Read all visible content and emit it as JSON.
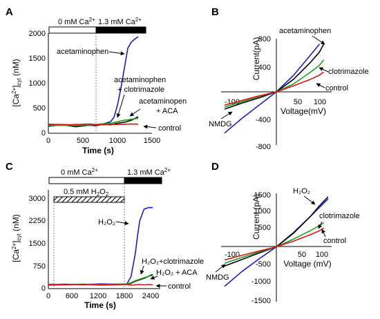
{
  "chart_data": [
    {
      "panel": "A",
      "type": "line",
      "xlabel": "Time (s)",
      "ylabel": "[Ca2+]cyt (nM)",
      "xlim": [
        0,
        1500
      ],
      "ylim": [
        0,
        2000
      ],
      "x_ticks": [
        0,
        500,
        1000,
        1500
      ],
      "y_ticks": [
        0,
        500,
        1000,
        1500,
        2000
      ],
      "condition_bars": [
        {
          "label": "0 mM Ca2+",
          "x_range": [
            0,
            680
          ],
          "fill": "white"
        },
        {
          "label": "1.3 mM Ca2+",
          "x_range": [
            680,
            1360
          ],
          "fill": "black"
        }
      ],
      "series": [
        {
          "name": "acetaminophen",
          "color": "#1a1acc",
          "x": [
            0,
            200,
            400,
            600,
            680,
            800,
            900,
            950,
            1000,
            1050,
            1100,
            1150,
            1200,
            1250,
            1300
          ],
          "y": [
            170,
            160,
            175,
            180,
            170,
            190,
            230,
            320,
            560,
            900,
            1300,
            1700,
            1820,
            1880,
            1930
          ]
        },
        {
          "name": "acetaminophen + clotrimazole",
          "color": "#000000",
          "x": [
            0,
            200,
            400,
            600,
            680,
            800,
            900,
            1000,
            1100,
            1200,
            1300
          ],
          "y": [
            140,
            170,
            130,
            160,
            150,
            180,
            170,
            200,
            220,
            260,
            330
          ]
        },
        {
          "name": "acetaminopen + ACA",
          "color": "#1f9e1f",
          "x": [
            0,
            200,
            400,
            600,
            680,
            800,
            900,
            1000,
            1100,
            1200,
            1300
          ],
          "y": [
            150,
            160,
            150,
            160,
            170,
            190,
            200,
            230,
            260,
            280,
            300
          ]
        },
        {
          "name": "control",
          "color": "#dd1111",
          "x": [
            0,
            200,
            400,
            600,
            680,
            800,
            900,
            1000,
            1100,
            1200,
            1300
          ],
          "y": [
            180,
            175,
            170,
            185,
            175,
            170,
            180,
            175,
            180,
            185,
            180
          ]
        }
      ],
      "annotations": [
        {
          "text": "acetaminophen"
        },
        {
          "text": "acetaminophen"
        },
        {
          "text": "+ clotrimazole"
        },
        {
          "text": "acetaminopen"
        },
        {
          "text": "+ ACA"
        },
        {
          "text": "control"
        }
      ]
    },
    {
      "panel": "B",
      "type": "line",
      "xlabel": "Voltage(mV)",
      "ylabel": "Current(pA)",
      "xlim": [
        -125,
        125
      ],
      "ylim": [
        -800,
        800
      ],
      "x_ticks": [
        -100,
        50,
        100
      ],
      "y_ticks": [
        -800,
        -400,
        400,
        800
      ],
      "series": [
        {
          "name": "NMDG",
          "color": "#1a1acc",
          "x": [
            -120,
            -80,
            -40,
            0,
            40,
            80,
            100
          ],
          "y": [
            -620,
            -400,
            -200,
            0,
            250,
            560,
            720
          ]
        },
        {
          "name": "acetaminophen",
          "color": "#000000",
          "x": [
            -120,
            -80,
            -40,
            0,
            40,
            80,
            100,
            110
          ],
          "y": [
            -260,
            -170,
            -90,
            0,
            190,
            450,
            600,
            720
          ]
        },
        {
          "name": "clotrimazole",
          "color": "#1f9e1f",
          "x": [
            -120,
            -80,
            -40,
            0,
            40,
            80,
            100,
            110
          ],
          "y": [
            -230,
            -150,
            -70,
            0,
            120,
            300,
            400,
            480
          ]
        },
        {
          "name": "control",
          "color": "#dd1111",
          "x": [
            -120,
            -80,
            -40,
            0,
            40,
            80,
            100,
            110
          ],
          "y": [
            -200,
            -130,
            -60,
            0,
            90,
            190,
            250,
            300
          ]
        }
      ],
      "annotations": [
        {
          "text": "acetaminophen"
        },
        {
          "text": "clotrimazole"
        },
        {
          "text": "control"
        },
        {
          "text": "NMDG"
        }
      ]
    },
    {
      "panel": "C",
      "type": "line",
      "xlabel": "Time (s)",
      "ylabel": "[Ca2+]cyt (nM)",
      "xlim": [
        0,
        2700
      ],
      "ylim": [
        0,
        3400
      ],
      "x_ticks": [
        0,
        600,
        1200,
        1800,
        2400
      ],
      "y_ticks": [
        0,
        750,
        1500,
        2250,
        3000
      ],
      "condition_bars": [
        {
          "label": "0 mM Ca2+",
          "x_range": [
            0,
            1830
          ],
          "fill": "white"
        },
        {
          "label": "1.3 mM Ca2+",
          "x_range": [
            1830,
            2600
          ],
          "fill": "black"
        },
        {
          "label": "0.5 mM H2O2",
          "x_range": [
            100,
            1830
          ],
          "fill": "hatched"
        }
      ],
      "series": [
        {
          "name": "H2O2",
          "color": "#1a1acc",
          "x": [
            0,
            400,
            800,
            1200,
            1600,
            1800,
            1900,
            2000,
            2050,
            2100,
            2200,
            2300,
            2400
          ],
          "y": [
            150,
            130,
            140,
            160,
            150,
            150,
            400,
            1200,
            1800,
            2300,
            2700,
            2750,
            2750
          ]
        },
        {
          "name": "H2O2+clotrimazole",
          "color": "#000000",
          "x": [
            0,
            400,
            800,
            1200,
            1600,
            1800,
            1900,
            2000,
            2100,
            2200,
            2300,
            2400
          ],
          "y": [
            140,
            150,
            130,
            150,
            140,
            150,
            180,
            250,
            300,
            350,
            420,
            480
          ]
        },
        {
          "name": "H2O2 + ACA",
          "color": "#1f9e1f",
          "x": [
            0,
            400,
            800,
            1200,
            1600,
            1800,
            1900,
            2000,
            2100,
            2200,
            2300,
            2400
          ],
          "y": [
            150,
            140,
            150,
            140,
            150,
            160,
            200,
            270,
            320,
            370,
            420,
            450
          ]
        },
        {
          "name": "control",
          "color": "#dd1111",
          "x": [
            0,
            400,
            800,
            1200,
            1600,
            1800,
            1900,
            2000,
            2100,
            2200,
            2300,
            2400
          ],
          "y": [
            120,
            130,
            140,
            120,
            130,
            140,
            120,
            130,
            140,
            130,
            140,
            130
          ]
        }
      ],
      "annotations": [
        {
          "text": "H₂O₂"
        },
        {
          "text": "H₂O₂+clotrimazole"
        },
        {
          "text": "H₂O₂ + ACA"
        },
        {
          "text": "control"
        }
      ]
    },
    {
      "panel": "D",
      "type": "line",
      "xlabel": "Voltage (mV)",
      "ylabel": "Current (pA)",
      "xlim": [
        -125,
        125
      ],
      "ylim": [
        -1500,
        1500
      ],
      "x_ticks": [
        -100,
        50,
        100
      ],
      "y_ticks": [
        -1500,
        -1000,
        -500,
        500,
        1000,
        1500
      ],
      "series": [
        {
          "name": "NMDG",
          "color": "#1a1acc",
          "x": [
            -120,
            -80,
            -40,
            0,
            40,
            80,
            100,
            120
          ],
          "y": [
            -1150,
            -720,
            -350,
            0,
            420,
            900,
            1150,
            1400
          ]
        },
        {
          "name": "H2O2",
          "color": "#000000",
          "x": [
            -120,
            -80,
            -40,
            0,
            40,
            80,
            100,
            120
          ],
          "y": [
            -560,
            -370,
            -180,
            0,
            400,
            900,
            1200,
            1460
          ]
        },
        {
          "name": "clotrimazole",
          "color": "#1f9e1f",
          "x": [
            -120,
            -80,
            -40,
            0,
            40,
            80,
            100,
            110
          ],
          "y": [
            -480,
            -310,
            -150,
            0,
            230,
            480,
            620,
            700
          ]
        },
        {
          "name": "control",
          "color": "#dd1111",
          "x": [
            -120,
            -80,
            -40,
            0,
            40,
            80,
            100,
            110
          ],
          "y": [
            -380,
            -250,
            -120,
            0,
            170,
            360,
            470,
            550
          ]
        }
      ],
      "annotations": [
        {
          "text": "H₂O₂"
        },
        {
          "text": "clotrimazole"
        },
        {
          "text": "control"
        },
        {
          "text": "NMDG"
        }
      ]
    }
  ]
}
